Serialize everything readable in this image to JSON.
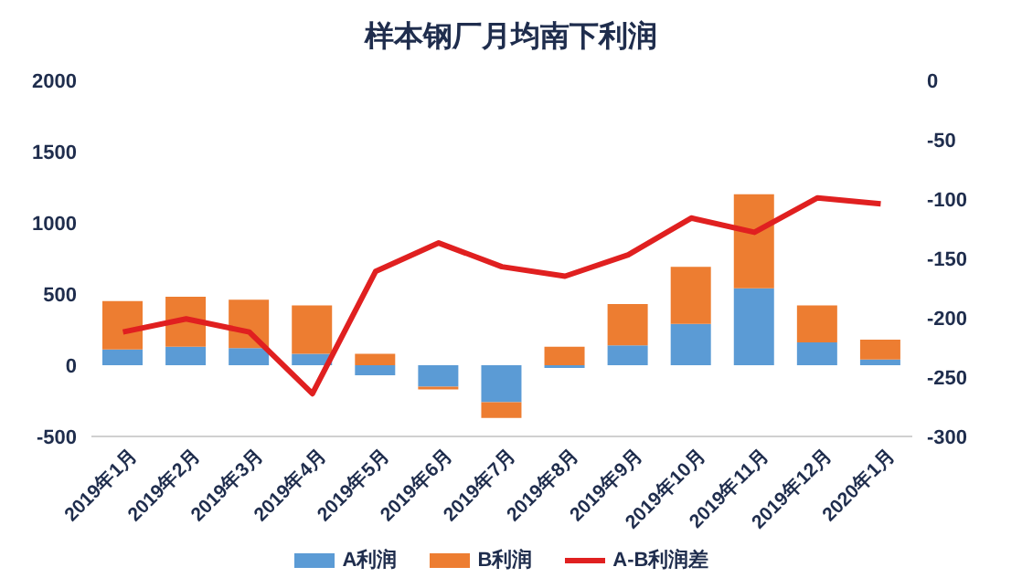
{
  "chart_data": {
    "type": "bar",
    "title": "样本钢厂月均南下利润",
    "categories": [
      "2019年1月",
      "2019年2月",
      "2019年3月",
      "2019年4月",
      "2019年5月",
      "2019年6月",
      "2019年7月",
      "2019年8月",
      "2019年9月",
      "2019年10月",
      "2019年11月",
      "2019年12月",
      "2020年1月"
    ],
    "stacked": true,
    "series": [
      {
        "name": "A利润",
        "color": "#5b9bd5",
        "values": [
          110,
          130,
          120,
          80,
          -70,
          -150,
          -260,
          -20,
          140,
          290,
          540,
          160,
          40
        ]
      },
      {
        "name": "B利润",
        "color": "#ed7d31",
        "values": [
          340,
          350,
          340,
          340,
          80,
          -20,
          -110,
          130,
          290,
          400,
          660,
          260,
          140
        ]
      },
      {
        "name": "A-B利润差",
        "type": "line",
        "axis": "y2",
        "color": "#e02020",
        "values": [
          -212,
          -201,
          -212,
          -264,
          -161,
          -137,
          -157,
          -165,
          -147,
          -116,
          -128,
          -99,
          -104
        ]
      }
    ],
    "ylim": [
      -500,
      2000
    ],
    "yticks": [
      -500,
      0,
      500,
      1000,
      1500,
      2000
    ],
    "y2lim": [
      -300,
      0
    ],
    "y2ticks": [
      -300,
      -250,
      -200,
      -150,
      -100,
      -50,
      0
    ],
    "grid": false,
    "legend": "bottom",
    "marker": "none"
  }
}
